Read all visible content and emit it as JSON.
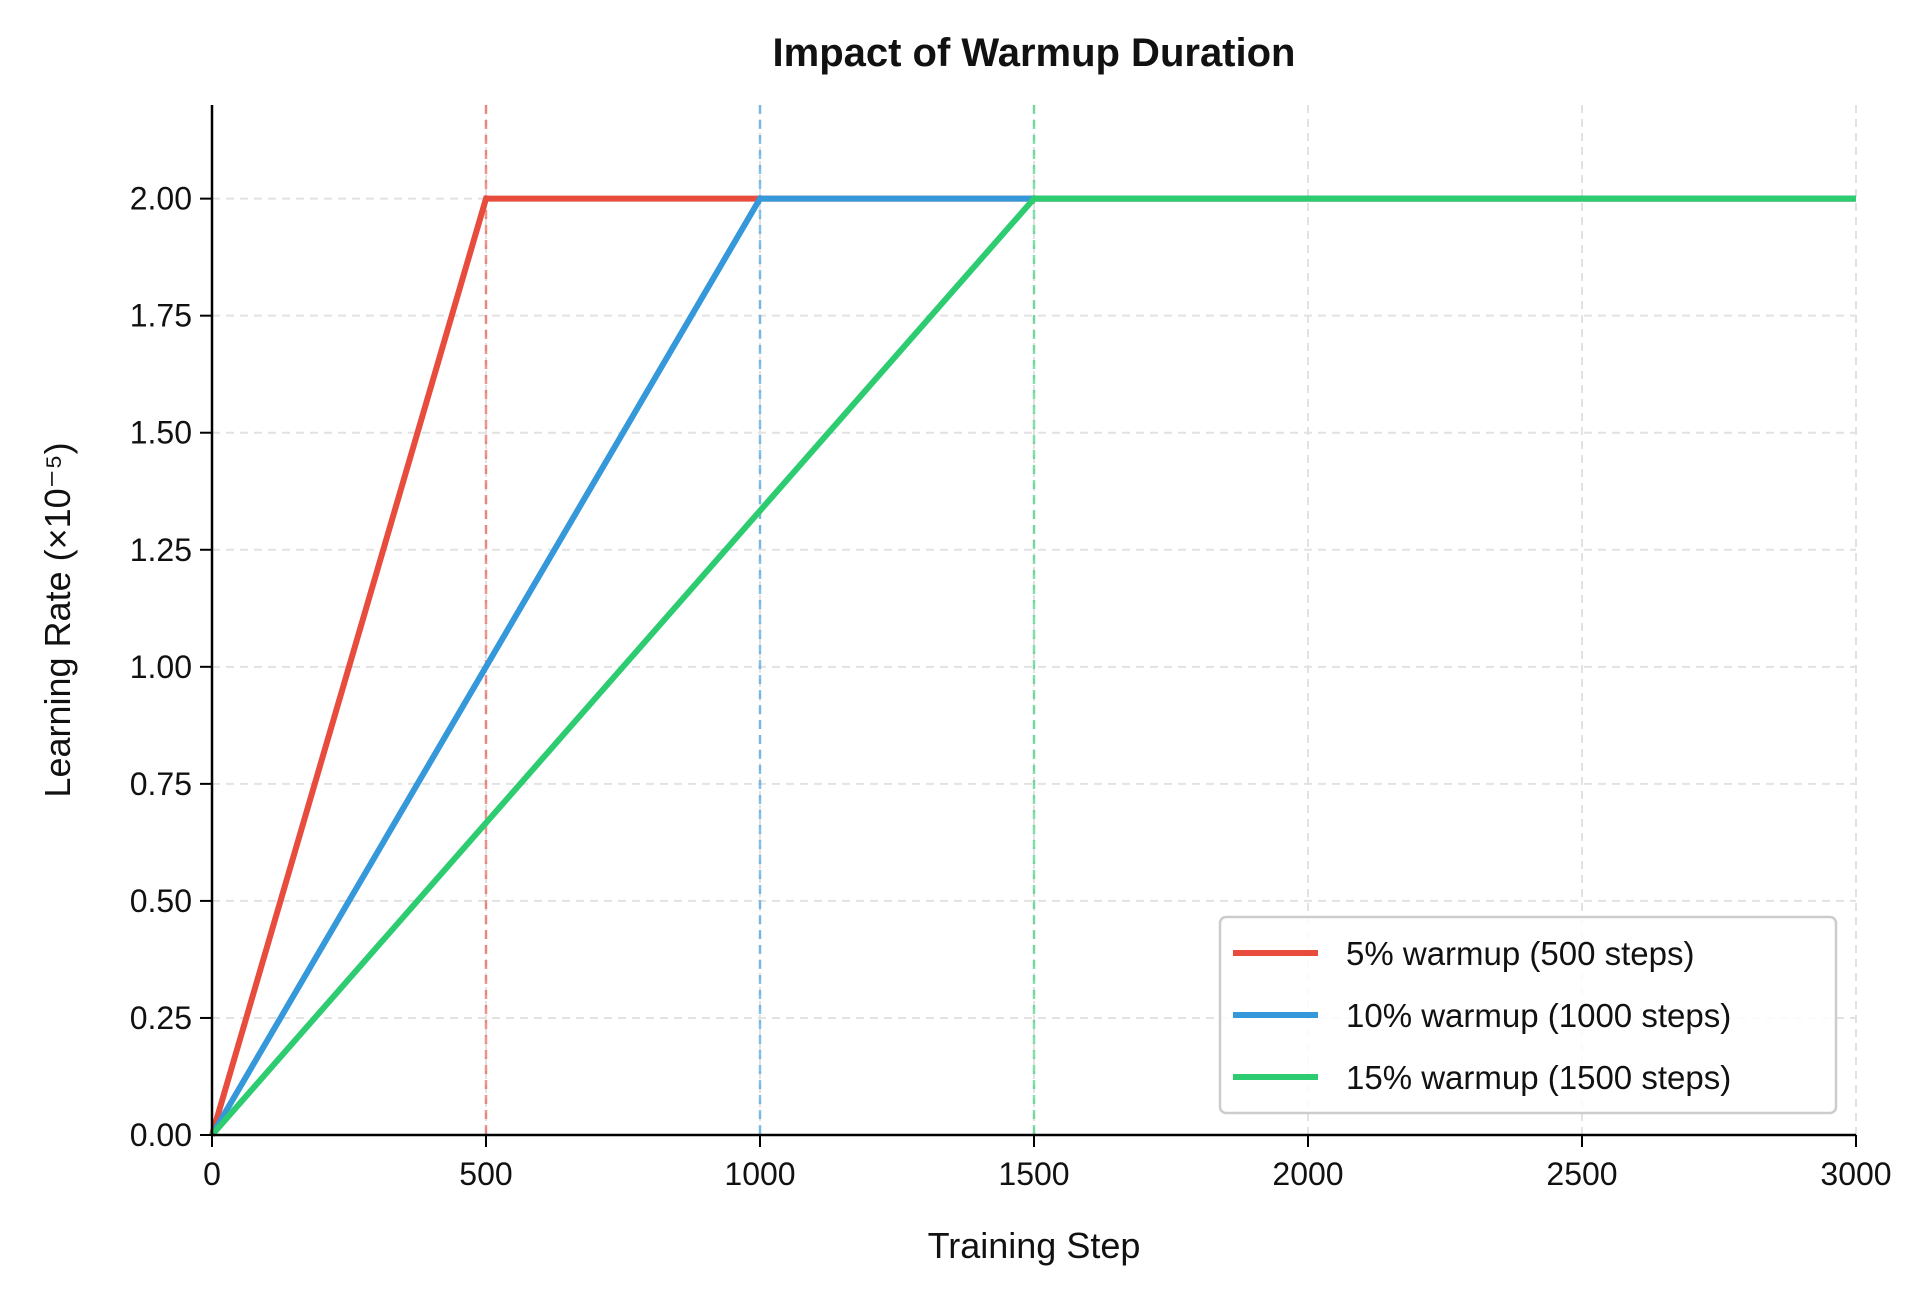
{
  "chart_data": {
    "type": "line",
    "title": "Impact of Warmup Duration",
    "xlabel": "Training Step",
    "ylabel": "Learning Rate (×10⁻⁵)",
    "xlim": [
      0,
      3000
    ],
    "ylim": [
      0,
      2.2
    ],
    "xticks": [
      0,
      500,
      1000,
      1500,
      2000,
      2500,
      3000
    ],
    "xtick_labels": [
      "0",
      "500",
      "1000",
      "1500",
      "2000",
      "2500",
      "3000"
    ],
    "yticks": [
      0,
      0.25,
      0.5,
      0.75,
      1.0,
      1.25,
      1.5,
      1.75,
      2.0
    ],
    "ytick_labels": [
      "0.00",
      "0.25",
      "0.50",
      "0.75",
      "1.00",
      "1.25",
      "1.50",
      "1.75",
      "2.00"
    ],
    "grid": true,
    "legend_position": "lower-right",
    "series": [
      {
        "name": "5% warmup (500 steps)",
        "color": "#e74c3c",
        "x": [
          0,
          500,
          3000
        ],
        "y": [
          0,
          2.0,
          2.0
        ],
        "warmup_marker": 500
      },
      {
        "name": "10% warmup (1000 steps)",
        "color": "#3498db",
        "x": [
          0,
          1000,
          3000
        ],
        "y": [
          0,
          2.0,
          2.0
        ],
        "warmup_marker": 1000
      },
      {
        "name": "15% warmup (1500 steps)",
        "color": "#2ecc71",
        "x": [
          0,
          1500,
          3000
        ],
        "y": [
          0,
          2.0,
          2.0
        ],
        "warmup_marker": 1500
      }
    ]
  }
}
